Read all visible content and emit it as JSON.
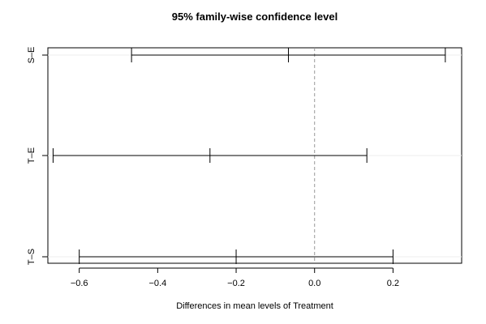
{
  "chart_data": {
    "type": "errorbar",
    "title": "95% family-wise confidence level",
    "xlabel": "Differences in mean levels of Treatment",
    "ylabel": "",
    "xlim": [
      -0.68,
      0.375
    ],
    "x_ticks": [
      -0.6,
      -0.4,
      -0.2,
      0.0,
      0.2
    ],
    "x_tick_labels": [
      "−0.6",
      "−0.4",
      "−0.2",
      "0.0",
      "0.2"
    ],
    "reference_line": 0.0,
    "comparisons": [
      {
        "label": "S–E",
        "estimate": -0.0667,
        "lower": -0.4667,
        "upper": 0.3333
      },
      {
        "label": "T–E",
        "estimate": -0.2667,
        "lower": -0.6667,
        "upper": 0.1333
      },
      {
        "label": "T–S",
        "estimate": -0.2,
        "lower": -0.6,
        "upper": 0.2
      }
    ]
  }
}
